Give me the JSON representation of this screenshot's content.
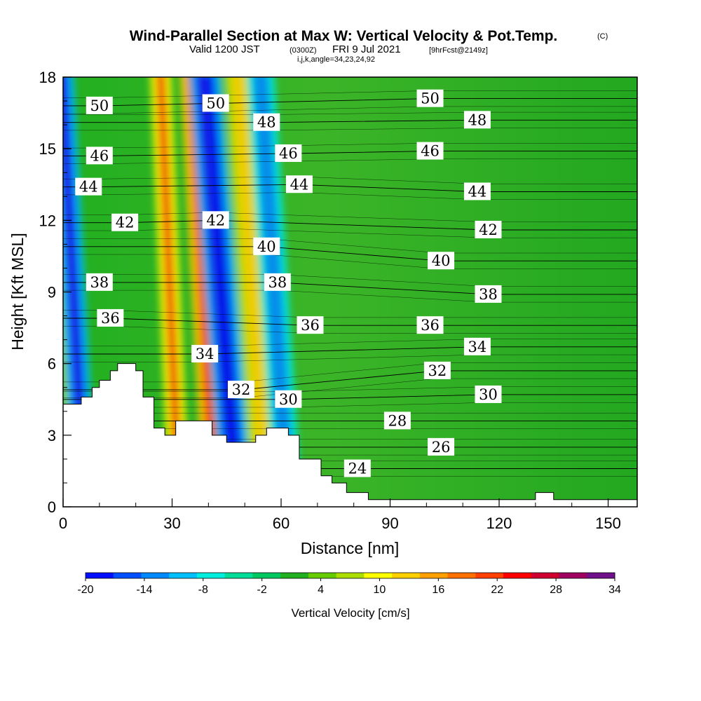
{
  "title": {
    "main": "Wind-Parallel Section at Max W: Vertical Velocity & Pot.Temp.",
    "copyright": "(C)",
    "valid_prefix": "Valid 1200 JST",
    "valid_utc": "(0300Z)",
    "valid_date": "FRI 9 Jul 2021",
    "forecast": "[9hrFcst@2149z]",
    "indices": "i,j,k,angle=34,23,24,92"
  },
  "chart_data": {
    "type": "heatmap",
    "xlabel": "Distance [nm]",
    "ylabel": "Height [Kft MSL]",
    "xlim": [
      0,
      158
    ],
    "ylim": [
      0,
      18
    ],
    "x_ticks": [
      0,
      30,
      60,
      90,
      120,
      150
    ],
    "y_ticks": [
      0,
      3,
      6,
      9,
      12,
      15,
      18
    ],
    "grid": false,
    "colorbar": {
      "title": "Vertical Velocity [cm/s]",
      "min": -20,
      "max": 34,
      "tick_labels": [
        -20,
        -14,
        -8,
        -2,
        4,
        10,
        16,
        22,
        28,
        34
      ],
      "colors": [
        "#0010ff",
        "#0050ff",
        "#0088ff",
        "#00c0ff",
        "#00eedd",
        "#00dd99",
        "#00c860",
        "#22b020",
        "#66cc00",
        "#aadd00",
        "#ffff00",
        "#ffd000",
        "#ffa000",
        "#ff7000",
        "#ff4000",
        "#ff0000",
        "#d00030",
        "#a00060",
        "#70108a"
      ]
    },
    "terrain_top_kft": [
      [
        0,
        4.3
      ],
      [
        5,
        4.3
      ],
      [
        5,
        4.6
      ],
      [
        8,
        4.6
      ],
      [
        8,
        5.0
      ],
      [
        10,
        5.0
      ],
      [
        10,
        5.3
      ],
      [
        13,
        5.3
      ],
      [
        13,
        5.7
      ],
      [
        15,
        5.7
      ],
      [
        15,
        6.0
      ],
      [
        20,
        6.0
      ],
      [
        20,
        5.7
      ],
      [
        22,
        5.7
      ],
      [
        22,
        4.6
      ],
      [
        25,
        4.6
      ],
      [
        25,
        3.3
      ],
      [
        28,
        3.3
      ],
      [
        28,
        3.0
      ],
      [
        31,
        3.0
      ],
      [
        31,
        3.6
      ],
      [
        41,
        3.6
      ],
      [
        41,
        3.0
      ],
      [
        45,
        3.0
      ],
      [
        45,
        2.7
      ],
      [
        53,
        2.7
      ],
      [
        53,
        3.0
      ],
      [
        56,
        3.0
      ],
      [
        56,
        3.3
      ],
      [
        62,
        3.3
      ],
      [
        62,
        3.0
      ],
      [
        65,
        3.0
      ],
      [
        65,
        2.0
      ],
      [
        71,
        2.0
      ],
      [
        71,
        1.3
      ],
      [
        74,
        1.3
      ],
      [
        74,
        1.0
      ],
      [
        78,
        1.0
      ],
      [
        78,
        0.6
      ],
      [
        84,
        0.6
      ],
      [
        84,
        0.3
      ],
      [
        130,
        0.3
      ],
      [
        130,
        0.6
      ],
      [
        135,
        0.6
      ],
      [
        135,
        0.3
      ],
      [
        158,
        0.3
      ]
    ],
    "dominant_features": [
      {
        "type": "updraft",
        "x_range": [
          0,
          4
        ],
        "w_max": 14
      },
      {
        "type": "downdraft",
        "x_range": [
          1,
          6
        ],
        "w_min": -20
      },
      {
        "type": "updraft",
        "x_range": [
          28,
          32
        ],
        "w_max": 20
      },
      {
        "type": "updraft",
        "x_range": [
          37,
          42
        ],
        "w_max": 22
      },
      {
        "type": "downdraft",
        "x_range": [
          41,
          48
        ],
        "w_min": -20
      },
      {
        "type": "updraft",
        "x_range": [
          50,
          56
        ],
        "w_max": 14
      },
      {
        "type": "downdraft",
        "x_range": [
          56,
          62
        ],
        "w_min": -14
      },
      {
        "type": "background",
        "x_range": [
          70,
          158
        ],
        "w_typical": -2
      }
    ],
    "contours": {
      "name": "Pot.Temp.",
      "levels": [
        24,
        26,
        28,
        30,
        32,
        34,
        36,
        38,
        40,
        42,
        44,
        46,
        48,
        50
      ],
      "labels": [
        {
          "text": "50",
          "x": 10,
          "y": 16.8
        },
        {
          "text": "50",
          "x": 42,
          "y": 16.9
        },
        {
          "text": "48",
          "x": 56,
          "y": 16.1
        },
        {
          "text": "46",
          "x": 10,
          "y": 14.7
        },
        {
          "text": "46",
          "x": 62,
          "y": 14.8
        },
        {
          "text": "44",
          "x": 7,
          "y": 13.4
        },
        {
          "text": "44",
          "x": 65,
          "y": 13.5
        },
        {
          "text": "42",
          "x": 17,
          "y": 11.9
        },
        {
          "text": "42",
          "x": 42,
          "y": 12.0
        },
        {
          "text": "40",
          "x": 56,
          "y": 10.9
        },
        {
          "text": "38",
          "x": 10,
          "y": 9.4
        },
        {
          "text": "38",
          "x": 59,
          "y": 9.4
        },
        {
          "text": "36",
          "x": 13,
          "y": 7.9
        },
        {
          "text": "36",
          "x": 68,
          "y": 7.6
        },
        {
          "text": "34",
          "x": 39,
          "y": 6.4
        },
        {
          "text": "32",
          "x": 49,
          "y": 4.9
        },
        {
          "text": "30",
          "x": 62,
          "y": 4.5
        },
        {
          "text": "50",
          "x": 101,
          "y": 17.1
        },
        {
          "text": "48",
          "x": 114,
          "y": 16.2
        },
        {
          "text": "46",
          "x": 101,
          "y": 14.9
        },
        {
          "text": "44",
          "x": 114,
          "y": 13.2
        },
        {
          "text": "42",
          "x": 117,
          "y": 11.6
        },
        {
          "text": "40",
          "x": 104,
          "y": 10.3
        },
        {
          "text": "38",
          "x": 117,
          "y": 8.9
        },
        {
          "text": "36",
          "x": 101,
          "y": 7.6
        },
        {
          "text": "34",
          "x": 114,
          "y": 6.7
        },
        {
          "text": "32",
          "x": 103,
          "y": 5.7
        },
        {
          "text": "30",
          "x": 117,
          "y": 4.7
        },
        {
          "text": "28",
          "x": 92,
          "y": 3.6
        },
        {
          "text": "26",
          "x": 104,
          "y": 2.5
        },
        {
          "text": "24",
          "x": 81,
          "y": 1.6
        }
      ]
    }
  }
}
